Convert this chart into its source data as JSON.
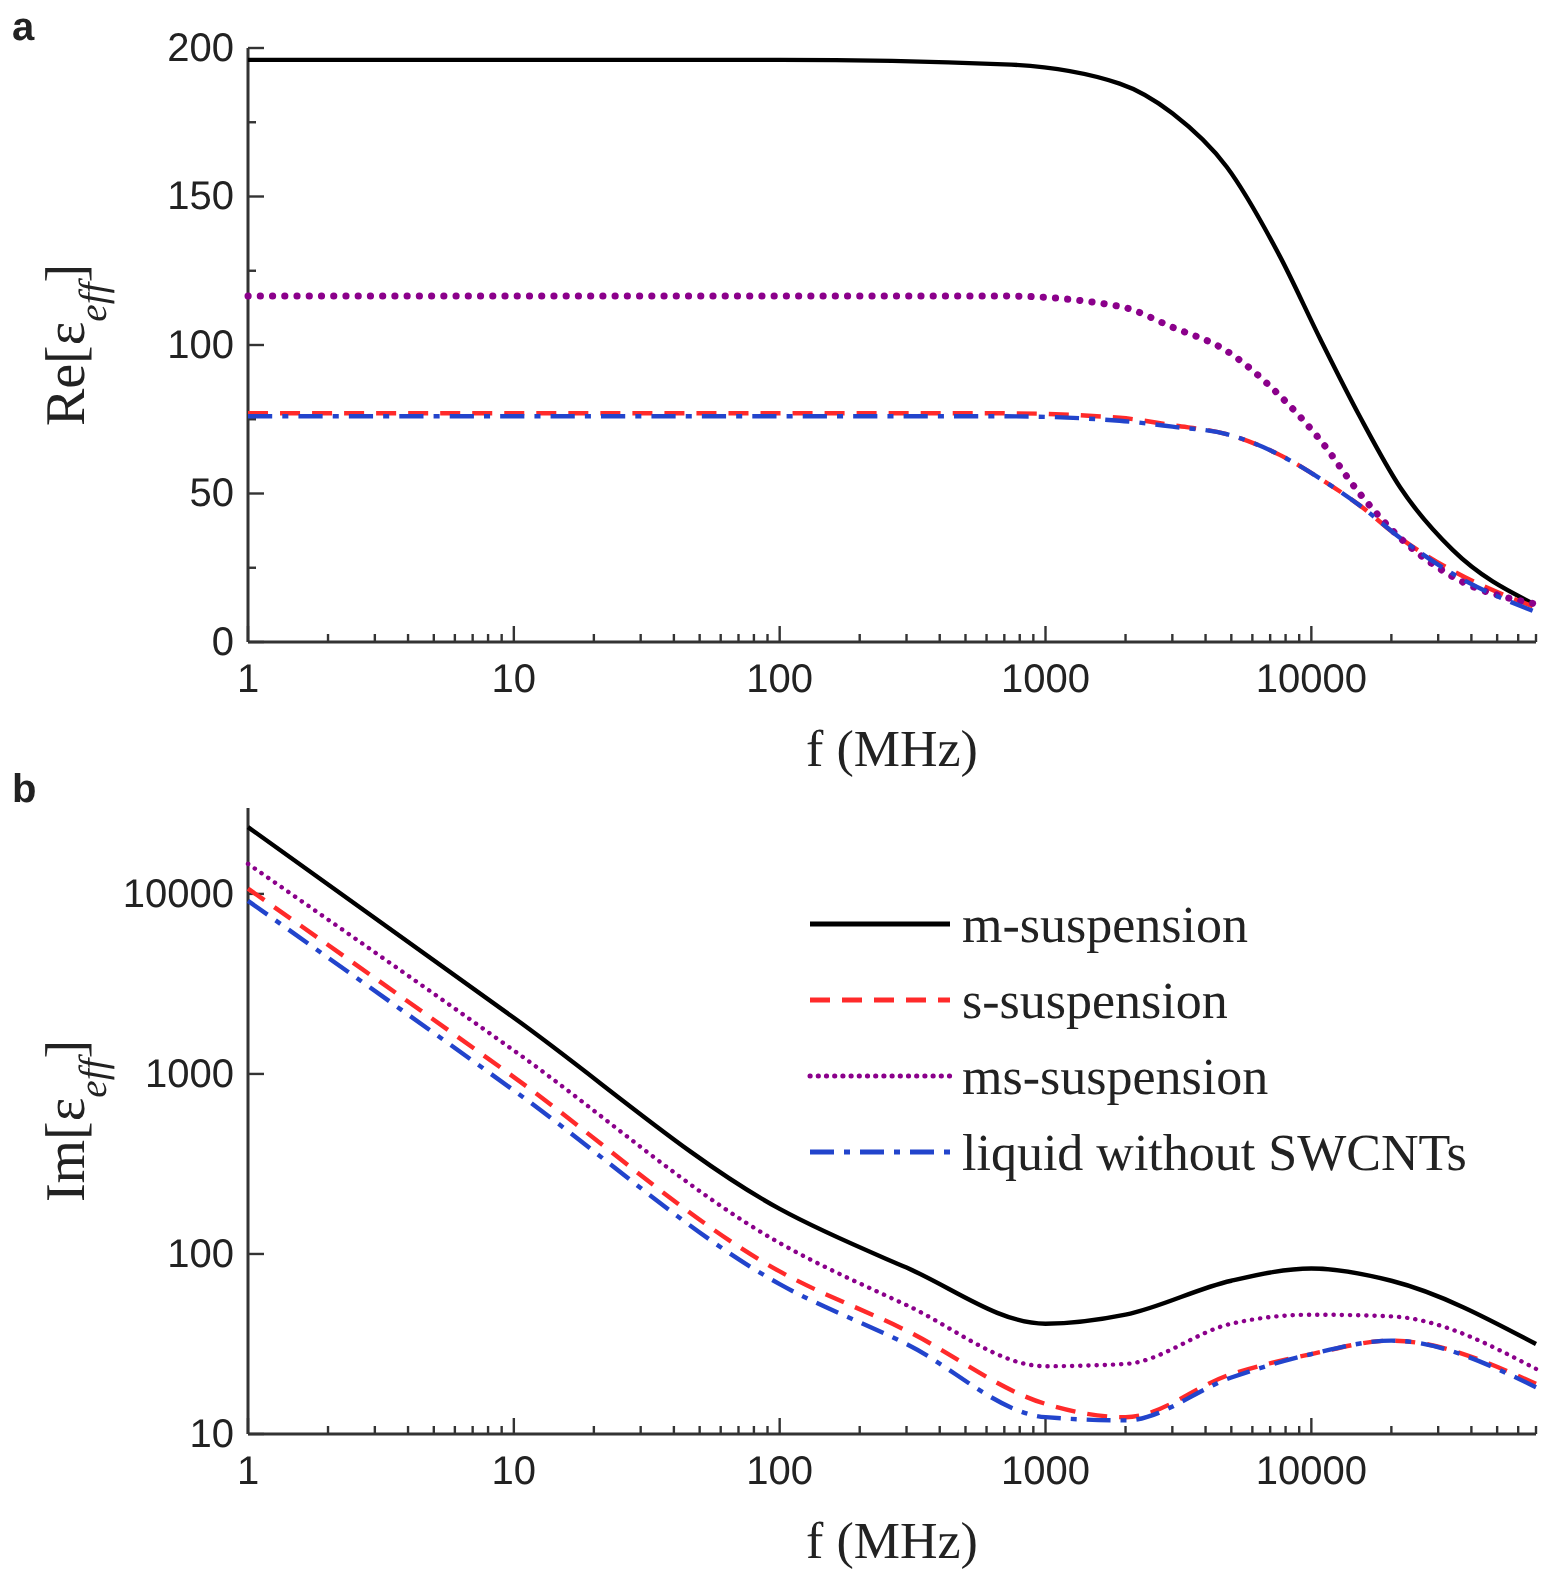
{
  "chart_data": [
    {
      "type": "line",
      "annotations": [
        "a"
      ],
      "xlabel": "f (MHz)",
      "ylabel": "Re[ε$_{eff}$]",
      "log": "x",
      "xlim": [
        1,
        70000
      ],
      "ylim": [
        0,
        200
      ],
      "xticks": [
        1,
        {
          "value": 2,
          "label": null
        },
        {
          "value": 3,
          "label": null
        },
        {
          "value": 4,
          "label": null
        },
        {
          "value": 5,
          "label": null
        },
        {
          "value": 6,
          "label": null
        },
        {
          "value": 7,
          "label": null
        },
        {
          "value": 8,
          "label": null
        },
        {
          "value": 9,
          "label": null
        },
        10,
        {
          "value": 20,
          "label": null
        },
        {
          "value": 30,
          "label": null
        },
        {
          "value": 40,
          "label": null
        },
        {
          "value": 50,
          "label": null
        },
        {
          "value": 60,
          "label": null
        },
        {
          "value": 70,
          "label": null
        },
        {
          "value": 80,
          "label": null
        },
        {
          "value": 90,
          "label": null
        },
        100,
        {
          "value": 200,
          "label": null
        },
        {
          "value": 300,
          "label": null
        },
        {
          "value": 400,
          "label": null
        },
        {
          "value": 500,
          "label": null
        },
        {
          "value": 600,
          "label": null
        },
        {
          "value": 700,
          "label": null
        },
        {
          "value": 800,
          "label": null
        },
        {
          "value": 900,
          "label": null
        },
        1000,
        {
          "value": 2000,
          "label": null
        },
        {
          "value": 3000,
          "label": null
        },
        {
          "value": 4000,
          "label": null
        },
        {
          "value": 5000,
          "label": null
        },
        {
          "value": 6000,
          "label": null
        },
        {
          "value": 7000,
          "label": null
        },
        {
          "value": 8000,
          "label": null
        },
        {
          "value": 9000,
          "label": null
        },
        10000,
        {
          "value": 20000,
          "label": null
        },
        {
          "value": 30000,
          "label": null
        },
        {
          "value": 40000,
          "label": null
        },
        {
          "value": 50000,
          "label": null
        },
        {
          "value": 60000,
          "label": null
        },
        {
          "value": 70000,
          "label": null
        }
      ],
      "yticks": [
        0,
        {
          "value": 25,
          "label": null
        },
        50,
        {
          "value": 75,
          "label": null
        },
        100,
        {
          "value": 125,
          "label": null
        },
        150,
        {
          "value": 175,
          "label": null
        },
        200
      ],
      "x": [
        1,
        10,
        100,
        700,
        1900,
        3000,
        4800,
        7600,
        10800,
        15200,
        21600,
        34000,
        68000
      ],
      "series": [
        {
          "color": "#000000",
          "line_style": "solid",
          "values": [
            196,
            196,
            196,
            194.5,
            188,
            178,
            160,
            130,
            102,
            76,
            52,
            31,
            13
          ]
        },
        {
          "color": "#ff2a2a",
          "line_style": "dashed",
          "values": [
            77,
            77,
            77,
            77,
            75.5,
            73,
            70,
            63,
            55,
            46,
            35,
            24,
            12
          ]
        },
        {
          "color": "#8b008b",
          "line_style": "dotted",
          "values": [
            116.5,
            116.5,
            116.5,
            116.5,
            113,
            106,
            98,
            83,
            68,
            50,
            35,
            22,
            13
          ]
        },
        {
          "color": "#2244cc",
          "line_style": "dashdot",
          "values": [
            76,
            76,
            76,
            76,
            74.5,
            72.5,
            70,
            63,
            55,
            46,
            35,
            23,
            10.5
          ]
        }
      ]
    },
    {
      "type": "line",
      "annotations": [
        "b"
      ],
      "xlabel": "f (MHz)",
      "ylabel": "Im[ε$_{eff}$]",
      "log": "xy",
      "xlim": [
        1,
        70000
      ],
      "ylim": [
        10,
        30000
      ],
      "legend": "top right",
      "xticks": [
        1,
        {
          "value": 2,
          "label": null
        },
        {
          "value": 3,
          "label": null
        },
        {
          "value": 4,
          "label": null
        },
        {
          "value": 5,
          "label": null
        },
        {
          "value": 6,
          "label": null
        },
        {
          "value": 7,
          "label": null
        },
        {
          "value": 8,
          "label": null
        },
        {
          "value": 9,
          "label": null
        },
        10,
        {
          "value": 20,
          "label": null
        },
        {
          "value": 30,
          "label": null
        },
        {
          "value": 40,
          "label": null
        },
        {
          "value": 50,
          "label": null
        },
        {
          "value": 60,
          "label": null
        },
        {
          "value": 70,
          "label": null
        },
        {
          "value": 80,
          "label": null
        },
        {
          "value": 90,
          "label": null
        },
        100,
        {
          "value": 200,
          "label": null
        },
        {
          "value": 300,
          "label": null
        },
        {
          "value": 400,
          "label": null
        },
        {
          "value": 500,
          "label": null
        },
        {
          "value": 600,
          "label": null
        },
        {
          "value": 700,
          "label": null
        },
        {
          "value": 800,
          "label": null
        },
        {
          "value": 900,
          "label": null
        },
        1000,
        {
          "value": 2000,
          "label": null
        },
        {
          "value": 3000,
          "label": null
        },
        {
          "value": 4000,
          "label": null
        },
        {
          "value": 5000,
          "label": null
        },
        {
          "value": 6000,
          "label": null
        },
        {
          "value": 7000,
          "label": null
        },
        {
          "value": 8000,
          "label": null
        },
        {
          "value": 9000,
          "label": null
        },
        10000,
        {
          "value": 20000,
          "label": null
        },
        {
          "value": 30000,
          "label": null
        },
        {
          "value": 40000,
          "label": null
        },
        {
          "value": 50000,
          "label": null
        },
        {
          "value": 60000,
          "label": null
        },
        {
          "value": 70000,
          "label": null
        }
      ],
      "yticks": [
        10,
        100,
        1000,
        10000
      ],
      "x": [
        1,
        10,
        100,
        300,
        1000,
        2000,
        5000,
        10000,
        20000,
        70000
      ],
      "series": [
        {
          "name": "m-suspension",
          "color": "#000000",
          "line_style": "solid",
          "values": [
            23500,
            2050,
            178,
            84,
            41,
            46,
            71,
            83,
            71,
            31.6
          ]
        },
        {
          "name": "s-suspension",
          "color": "#ff2a2a",
          "line_style": "dashed",
          "values": [
            10700,
            960,
            80,
            37.5,
            14.7,
            12.4,
            21.5,
            27.8,
            33,
            19
          ]
        },
        {
          "name": "ms-suspension",
          "color": "#8b008b",
          "line_style": "dotted",
          "values": [
            14700,
            1350,
            115,
            52,
            23.8,
            24.5,
            41,
            46,
            45,
            23
          ]
        },
        {
          "name": "liquid without SWCNTs",
          "color": "#2244cc",
          "line_style": "dashdot",
          "values": [
            9150,
            810,
            68,
            31.6,
            12.4,
            11.9,
            20.6,
            27.8,
            33,
            18.2
          ]
        }
      ]
    }
  ]
}
